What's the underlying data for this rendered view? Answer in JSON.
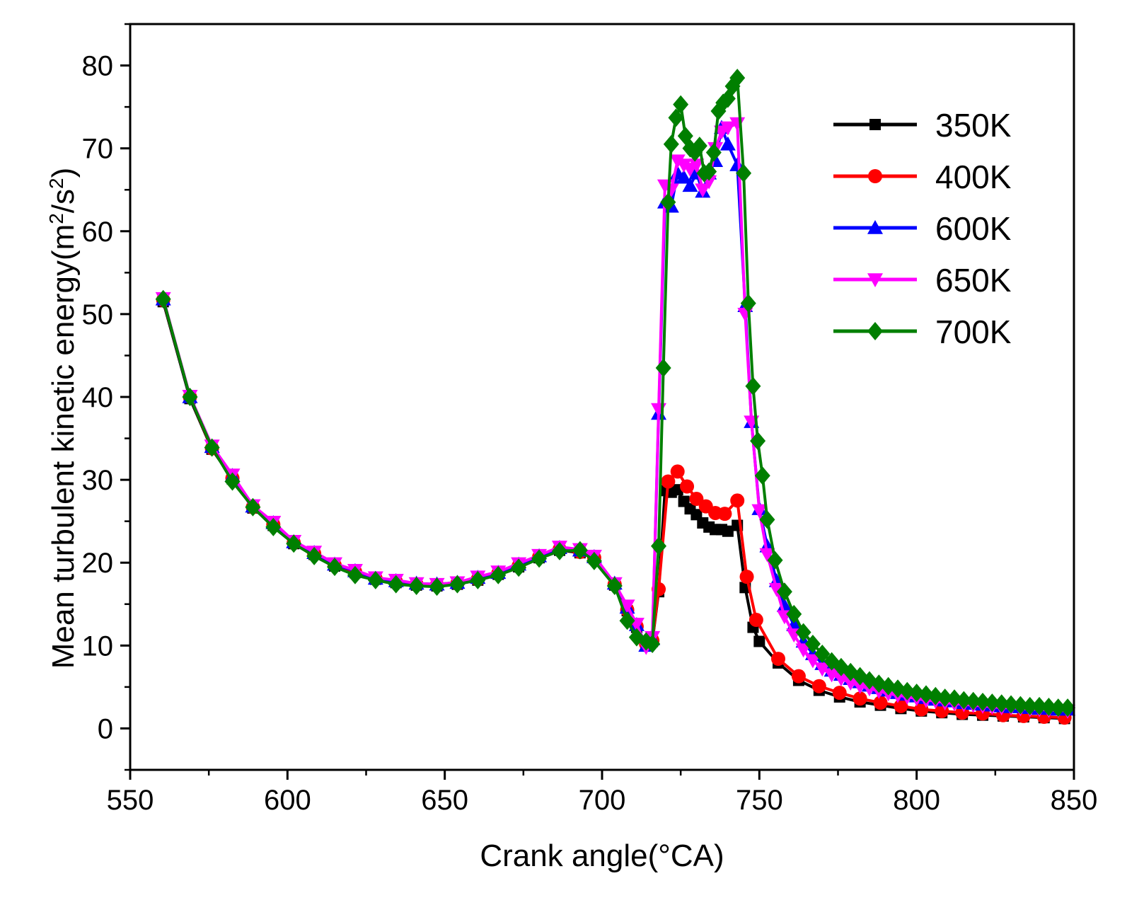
{
  "chart_data": {
    "type": "line",
    "title": "",
    "xlabel": "Crank angle(°CA)",
    "ylabel": "Mean turbulent kinetic energy(m²/s²)",
    "ylabel_parts": {
      "prefix": "Mean turbulent kinetic energy(m",
      "sup1": "2",
      "mid": "/s",
      "sup2": "2",
      "suffix": ")"
    },
    "xlim": [
      550,
      850
    ],
    "ylim": [
      -5,
      85
    ],
    "xticks": [
      "550",
      "600",
      "650",
      "700",
      "750",
      "800",
      "850"
    ],
    "yticks": [
      "0",
      "10",
      "20",
      "30",
      "40",
      "50",
      "60",
      "70",
      "80"
    ],
    "xtick_values": [
      550,
      600,
      650,
      700,
      750,
      800,
      850
    ],
    "ytick_values": [
      0,
      10,
      20,
      30,
      40,
      50,
      60,
      70,
      80
    ],
    "legend_position": "top-right",
    "grid": false,
    "series": [
      {
        "name": "350K",
        "color": "#000000",
        "marker": "square",
        "x": [
          560.5,
          569,
          576,
          582.5,
          589,
          595.5,
          602,
          608.5,
          615,
          621.5,
          628,
          634.5,
          641,
          647.5,
          654,
          660.5,
          667,
          673.5,
          680,
          686.5,
          693,
          697.5,
          704,
          708,
          711,
          714,
          716,
          718,
          720,
          722,
          724,
          726,
          728,
          730,
          732,
          734,
          736,
          738,
          740,
          743,
          745.5,
          748,
          750,
          756,
          762.5,
          769,
          775.5,
          782,
          788.5,
          795,
          801.5,
          808,
          814.5,
          821,
          827.5,
          834,
          840.5,
          847
        ],
        "y": [
          51.5,
          39.8,
          33.7,
          30.1,
          26.6,
          24.5,
          22.3,
          21.0,
          19.6,
          18.8,
          18.0,
          17.6,
          17.3,
          17.2,
          17.4,
          17.9,
          18.6,
          19.5,
          20.6,
          21.5,
          21.2,
          20.5,
          17.3,
          14.2,
          12.2,
          10.0,
          10.5,
          16.5,
          28.7,
          28.5,
          28.8,
          27.4,
          26.5,
          25.8,
          24.8,
          24.3,
          24.0,
          24.0,
          23.8,
          24.5,
          17.0,
          12.2,
          10.5,
          7.9,
          5.8,
          4.6,
          3.8,
          3.2,
          2.8,
          2.4,
          2.1,
          1.9,
          1.7,
          1.6,
          1.5,
          1.4,
          1.3,
          1.2
        ]
      },
      {
        "name": "400K",
        "color": "#ff0000",
        "marker": "circle",
        "x": [
          560.5,
          569,
          576,
          582.5,
          589,
          595.5,
          602,
          608.5,
          615,
          621.5,
          628,
          634.5,
          641,
          647.5,
          654,
          660.5,
          667,
          673.5,
          680,
          686.5,
          693,
          697.5,
          704,
          708,
          711,
          714,
          716,
          718,
          721,
          724,
          727,
          730,
          733,
          736,
          739,
          743,
          746,
          749,
          756,
          762.5,
          769,
          775.5,
          782,
          788.5,
          795,
          801.5,
          808,
          814.5,
          821,
          827.5,
          834,
          840.5,
          847
        ],
        "y": [
          51.7,
          40.0,
          33.8,
          30.2,
          26.7,
          24.6,
          22.4,
          21.1,
          19.7,
          18.9,
          18.1,
          17.7,
          17.4,
          17.3,
          17.5,
          18.0,
          18.7,
          19.6,
          20.7,
          21.6,
          21.3,
          20.6,
          17.4,
          14.3,
          12.3,
          10.2,
          10.6,
          16.8,
          29.8,
          31.0,
          29.2,
          27.7,
          26.8,
          26.0,
          25.9,
          27.5,
          18.3,
          13.1,
          8.4,
          6.3,
          5.1,
          4.3,
          3.6,
          3.1,
          2.7,
          2.3,
          2.1,
          1.9,
          1.8,
          1.6,
          1.5,
          1.4,
          1.3
        ]
      },
      {
        "name": "600K",
        "color": "#0000ff",
        "marker": "triangle-up",
        "x": [
          560.5,
          569,
          576,
          582.5,
          589,
          595.5,
          602,
          608.5,
          615,
          621.5,
          628,
          634.5,
          641,
          647.5,
          654,
          660.5,
          667,
          673.5,
          680,
          686.5,
          693,
          697.5,
          704,
          708,
          711,
          714,
          716,
          718,
          720,
          722,
          724,
          726,
          728,
          730,
          732,
          734,
          736,
          738,
          740,
          743,
          745.5,
          747.5,
          750,
          752.5,
          755.5,
          758,
          761,
          764,
          767,
          770,
          773,
          776,
          779,
          782,
          785,
          788,
          791,
          794,
          797,
          800,
          803,
          806,
          809,
          812,
          815,
          818,
          821,
          824,
          827,
          830,
          833,
          836,
          839,
          842,
          845,
          848
        ],
        "y": [
          51.8,
          40.0,
          34.0,
          30.5,
          26.8,
          24.8,
          22.5,
          21.2,
          19.8,
          19.0,
          18.1,
          17.8,
          17.5,
          17.4,
          17.6,
          18.2,
          18.8,
          19.8,
          20.8,
          21.8,
          21.5,
          20.7,
          17.5,
          14.6,
          12.5,
          10.0,
          10.8,
          38.0,
          63.5,
          63.0,
          67.0,
          66.5,
          65.5,
          67.0,
          64.8,
          67.0,
          68.5,
          72.5,
          70.5,
          68.0,
          51.0,
          37.0,
          26.5,
          22.0,
          17.8,
          14.8,
          12.5,
          10.5,
          9.0,
          7.8,
          7.0,
          6.5,
          6.0,
          5.6,
          5.2,
          4.9,
          4.6,
          4.3,
          4.1,
          3.9,
          3.7,
          3.5,
          3.4,
          3.3,
          3.1,
          3.0,
          2.9,
          2.8,
          2.7,
          2.6,
          2.6,
          2.5,
          2.4,
          2.4,
          2.3,
          2.3
        ]
      },
      {
        "name": "650K",
        "color": "#ff00ff",
        "marker": "triangle-down",
        "x": [
          560.5,
          569,
          576,
          582.5,
          589,
          595.5,
          602,
          608.5,
          615,
          621.5,
          628,
          634.5,
          641,
          647.5,
          654,
          660.5,
          667,
          673.5,
          680,
          686.5,
          693,
          697.5,
          704,
          708,
          711,
          714,
          716,
          718,
          720,
          722,
          724,
          726,
          728,
          730,
          732,
          734,
          736,
          738,
          740,
          743,
          745.5,
          747.5,
          750,
          752.5,
          755.5,
          758,
          761,
          764,
          767,
          770,
          773,
          776,
          779,
          782,
          785,
          788,
          791,
          794,
          797,
          800,
          803,
          806,
          809,
          812,
          815,
          818,
          821,
          824,
          827,
          830,
          833,
          836,
          839,
          842,
          845,
          848
        ],
        "y": [
          51.9,
          40.1,
          34.1,
          30.6,
          26.9,
          24.9,
          22.6,
          21.3,
          19.9,
          19.1,
          18.2,
          17.9,
          17.5,
          17.4,
          17.6,
          18.3,
          18.9,
          19.9,
          20.9,
          21.9,
          21.6,
          20.8,
          17.5,
          14.8,
          12.6,
          9.8,
          11.0,
          38.5,
          65.5,
          65.0,
          68.5,
          68.0,
          67.5,
          68.0,
          65.0,
          66.0,
          70.0,
          72.0,
          72.5,
          73.0,
          50.0,
          37.0,
          26.3,
          21.0,
          16.8,
          13.5,
          11.3,
          9.5,
          8.2,
          7.2,
          6.5,
          6.0,
          5.5,
          5.1,
          4.8,
          4.5,
          4.2,
          4.0,
          3.8,
          3.6,
          3.4,
          3.3,
          3.1,
          3.0,
          2.9,
          2.8,
          2.7,
          2.6,
          2.5,
          2.5,
          2.4,
          2.3,
          2.3,
          2.2,
          2.2,
          2.1
        ]
      },
      {
        "name": "700K",
        "color": "#007f00",
        "marker": "diamond",
        "x": [
          560.5,
          569,
          576,
          582.5,
          589,
          595.5,
          602,
          608.5,
          615,
          621.5,
          628,
          634.5,
          641,
          647.5,
          654,
          660.5,
          667,
          673.5,
          680,
          686.5,
          693,
          697.5,
          704,
          708,
          711,
          714,
          716,
          718,
          719.5,
          721,
          722,
          723.5,
          725,
          726.5,
          728,
          729.5,
          731,
          732.5,
          734,
          735.5,
          737,
          738.5,
          740,
          741.5,
          743,
          745,
          746.5,
          748,
          749.5,
          751,
          752.5,
          755,
          758,
          761,
          764,
          767,
          770,
          773,
          776,
          779,
          782,
          785,
          788,
          791,
          794,
          797,
          800,
          803,
          806,
          809,
          812,
          815,
          818,
          821,
          824,
          827,
          830,
          833,
          836,
          839,
          842,
          845,
          848
        ],
        "y": [
          51.8,
          40.0,
          33.9,
          29.8,
          26.7,
          24.3,
          22.3,
          20.8,
          19.5,
          18.5,
          17.9,
          17.4,
          17.2,
          17.1,
          17.4,
          17.9,
          18.5,
          19.4,
          20.5,
          21.4,
          21.5,
          20.2,
          17.2,
          13.0,
          11.0,
          10.5,
          10.2,
          22.0,
          43.5,
          63.5,
          70.5,
          73.7,
          75.3,
          71.5,
          70.0,
          69.5,
          70.3,
          67.0,
          67.2,
          69.5,
          74.5,
          75.5,
          76.0,
          77.5,
          78.5,
          67.0,
          51.3,
          41.3,
          34.7,
          30.5,
          25.2,
          20.3,
          16.5,
          13.8,
          11.6,
          10.2,
          9.0,
          8.1,
          7.4,
          6.8,
          6.3,
          5.8,
          5.4,
          5.1,
          4.8,
          4.5,
          4.3,
          4.1,
          3.9,
          3.7,
          3.6,
          3.4,
          3.3,
          3.2,
          3.1,
          3.0,
          2.9,
          2.8,
          2.7,
          2.7,
          2.6,
          2.5,
          2.5
        ]
      }
    ]
  }
}
